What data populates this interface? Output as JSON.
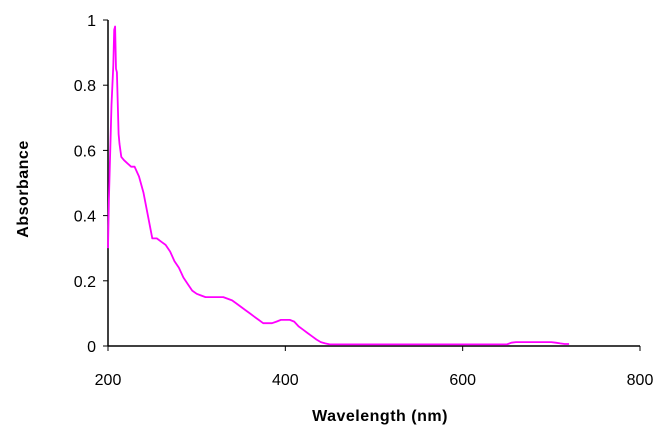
{
  "chart_data": {
    "type": "line",
    "title": "",
    "xlabel": "Wavelength (nm)",
    "ylabel": "Absorbance",
    "xlim": [
      200,
      800
    ],
    "ylim": [
      0,
      1
    ],
    "x_ticks": [
      200,
      400,
      600,
      800
    ],
    "y_ticks": [
      0,
      0.2,
      0.4,
      0.6,
      0.8,
      1
    ],
    "x_tick_labels": [
      "200",
      "400",
      "600",
      "800"
    ],
    "y_tick_labels": [
      "0",
      "0.2",
      "0.4",
      "0.6",
      "0.8",
      "1"
    ],
    "grid": false,
    "legend": "none",
    "series": [
      {
        "color": "#ff00ff",
        "x": [
          200,
          201,
          202,
          203,
          204,
          205,
          206,
          207,
          208,
          209,
          210,
          211,
          212,
          213,
          215,
          218,
          222,
          226,
          230,
          235,
          240,
          245,
          250,
          255,
          260,
          265,
          270,
          275,
          280,
          285,
          290,
          295,
          300,
          305,
          310,
          320,
          330,
          340,
          345,
          350,
          355,
          360,
          365,
          370,
          375,
          380,
          385,
          390,
          395,
          400,
          405,
          410,
          415,
          420,
          425,
          430,
          435,
          440,
          445,
          450,
          455,
          460,
          480,
          500,
          550,
          600,
          650,
          655,
          660,
          670,
          680,
          690,
          700,
          705,
          710,
          715,
          720
        ],
        "y": [
          0.3,
          0.45,
          0.55,
          0.65,
          0.74,
          0.8,
          0.86,
          0.97,
          0.98,
          0.85,
          0.84,
          0.74,
          0.65,
          0.62,
          0.58,
          0.57,
          0.56,
          0.55,
          0.55,
          0.52,
          0.47,
          0.4,
          0.33,
          0.33,
          0.32,
          0.31,
          0.29,
          0.26,
          0.24,
          0.21,
          0.19,
          0.17,
          0.16,
          0.155,
          0.15,
          0.15,
          0.15,
          0.14,
          0.13,
          0.12,
          0.11,
          0.1,
          0.09,
          0.08,
          0.07,
          0.07,
          0.07,
          0.075,
          0.08,
          0.08,
          0.08,
          0.075,
          0.06,
          0.05,
          0.04,
          0.03,
          0.02,
          0.012,
          0.008,
          0.005,
          0.005,
          0.005,
          0.005,
          0.005,
          0.005,
          0.005,
          0.005,
          0.01,
          0.012,
          0.012,
          0.012,
          0.012,
          0.012,
          0.01,
          0.008,
          0.006,
          0.006
        ]
      }
    ]
  }
}
